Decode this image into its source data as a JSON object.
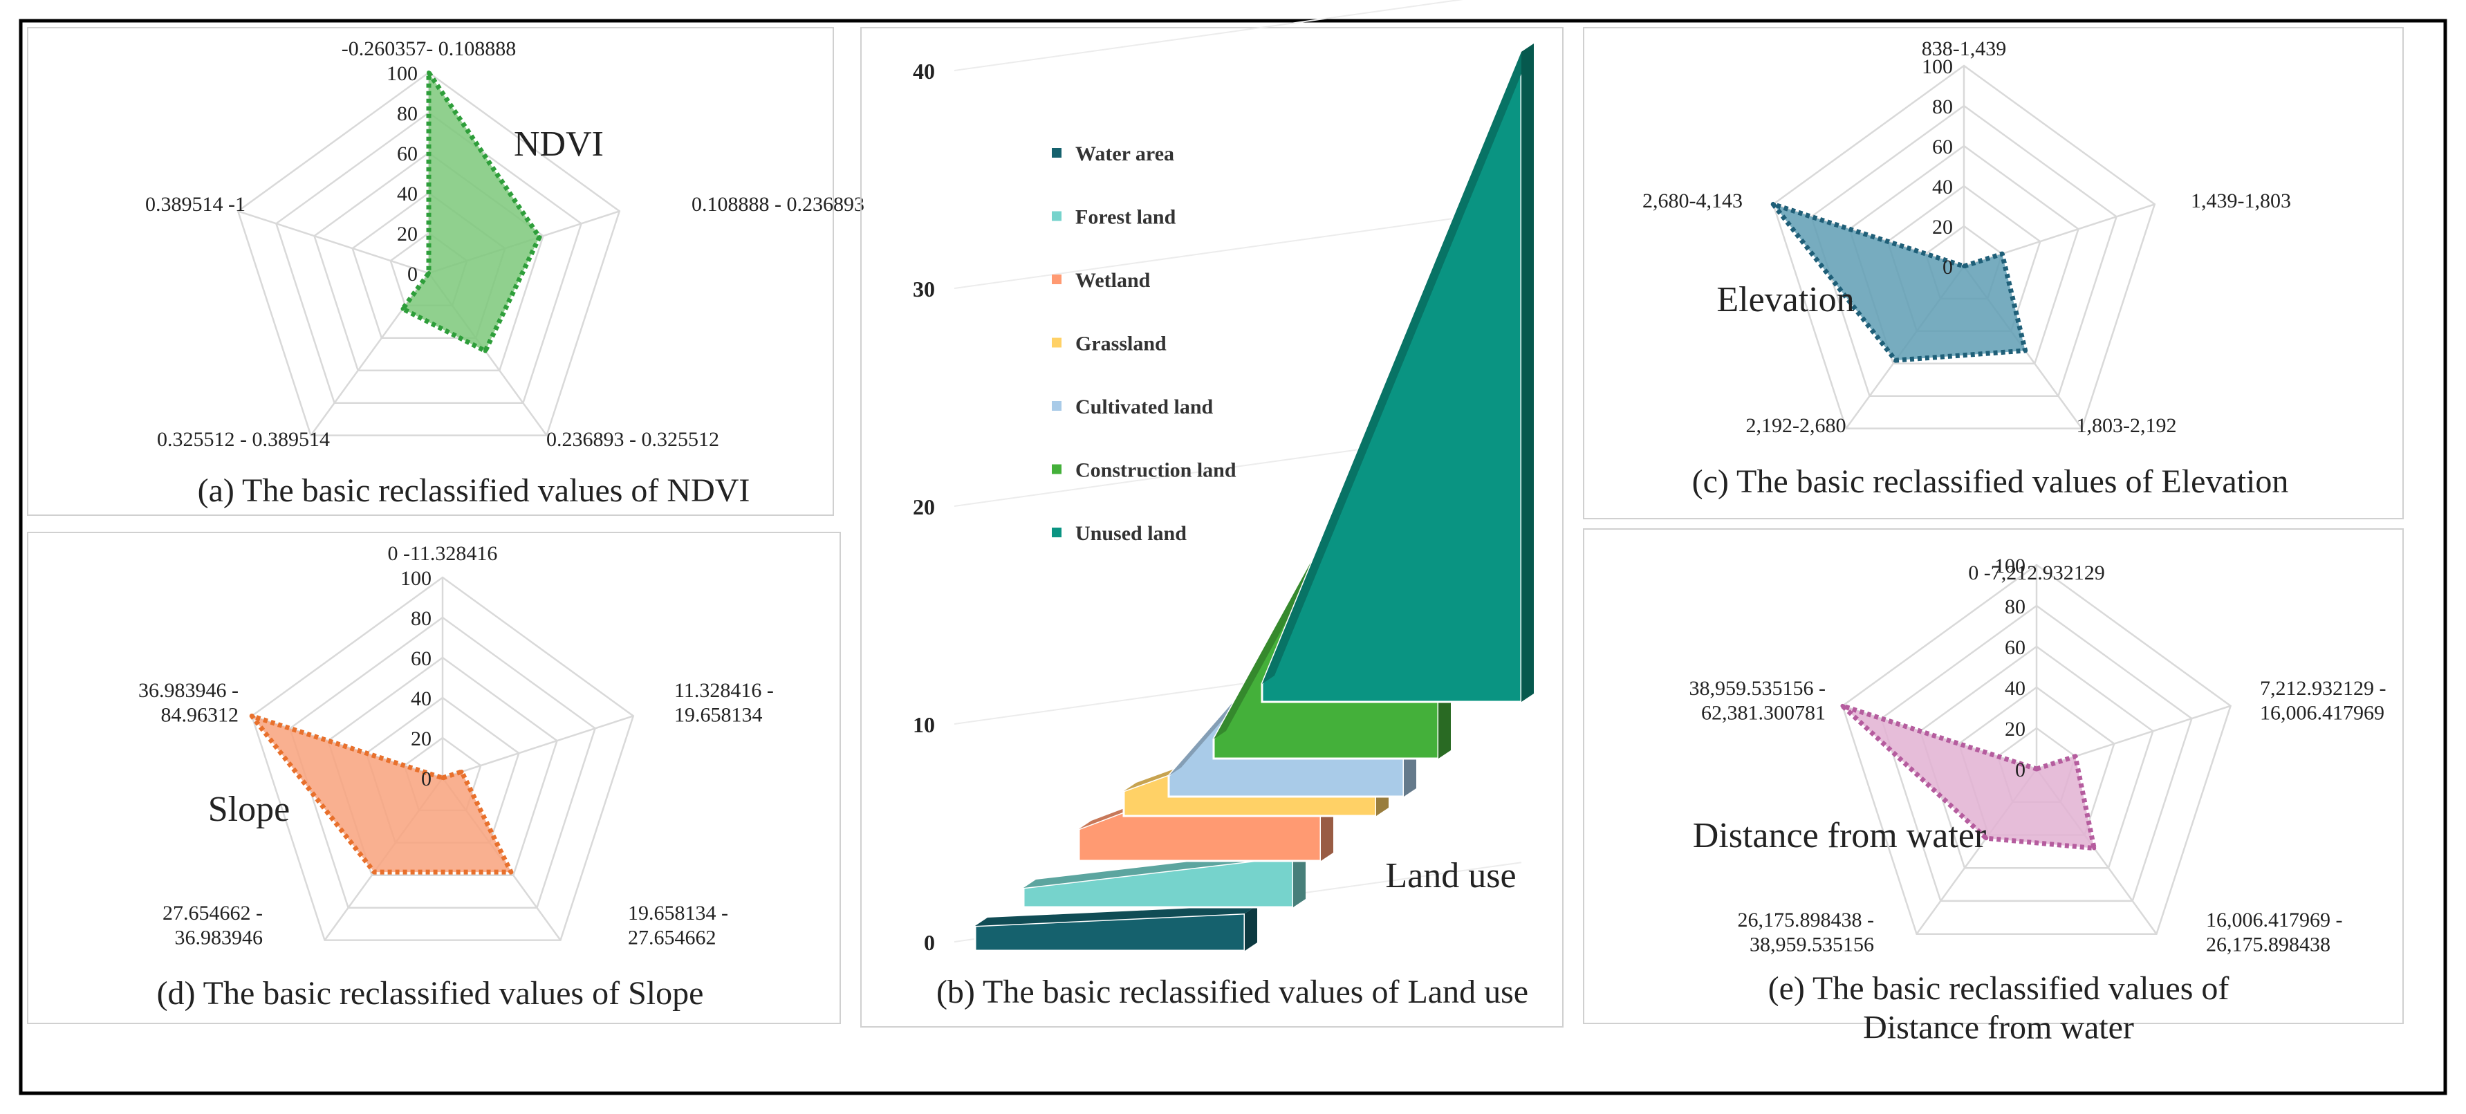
{
  "figure": {
    "colors": {
      "frame": "#000000",
      "panel_border": "#d0d0d0",
      "grid": "#d9d9d9",
      "text": "#222222"
    }
  },
  "chart_data": [
    {
      "id": "a",
      "type": "radar",
      "title": "NDVI",
      "caption": "(a) The basic reclassified values of NDVI",
      "categories": [
        "-0.260357- 0.108888",
        "0.108888 - 0.236893",
        "0.236893 - 0.325512",
        "0.325512 - 0.389514",
        "0.389514 -1"
      ],
      "values": [
        100,
        58,
        48,
        22,
        0
      ],
      "scale": [
        0,
        100
      ],
      "ticks": [
        0,
        20,
        40,
        60,
        80,
        100
      ],
      "fill": "#7dc87a",
      "stroke": "#2e9e3a"
    },
    {
      "id": "c",
      "type": "radar",
      "title": "Elevation",
      "caption": "(c) The basic reclassified values  of Elevation",
      "categories": [
        "838-1,439",
        "1,439-1,803",
        "1,803-2,192",
        "2,192-2,680",
        "2,680-4,143"
      ],
      "values": [
        0,
        20,
        52,
        58,
        100
      ],
      "scale": [
        0,
        100
      ],
      "ticks": [
        0,
        20,
        40,
        60,
        80,
        100
      ],
      "fill": "#5f9db4",
      "stroke": "#1f5f78"
    },
    {
      "id": "d",
      "type": "radar",
      "title": "Slope",
      "caption": "(d) The basic reclassified values of Slope",
      "categories": [
        "0 -11.328416",
        "11.328416 -\n19.658134",
        "19.658134 -\n27.654662",
        "27.654662 -\n36.983946",
        "36.983946 -\n84.96312"
      ],
      "values": [
        0,
        10,
        58,
        58,
        100
      ],
      "scale": [
        0,
        100
      ],
      "ticks": [
        0,
        20,
        40,
        60,
        80,
        100
      ],
      "fill": "#f8a27c",
      "stroke": "#e8702c"
    },
    {
      "id": "e",
      "type": "radar",
      "title": "Distance from water",
      "caption": "(e) The basic reclassified values of\nDistance from water",
      "categories": [
        "0 -7,212.932129",
        "7,212.932129 -\n16,006.417969",
        "16,006.417969 -\n26,175.898438",
        "26,175.898438 -\n38,959.535156",
        "38,959.535156 -\n62,381.300781"
      ],
      "values": [
        0,
        20,
        48,
        42,
        100
      ],
      "scale": [
        0,
        100
      ],
      "ticks": [
        0,
        20,
        40,
        60,
        80,
        100
      ],
      "fill": "#e2b2d2",
      "stroke": "#b55c9e"
    },
    {
      "id": "b",
      "type": "bar3d",
      "title": "Land use",
      "caption": "(b) The basic reclassified values  of Land use",
      "ylim": [
        0,
        100
      ],
      "yticks": [
        0,
        10,
        20,
        30,
        40,
        50,
        60,
        70,
        80,
        90,
        100
      ],
      "series": [
        {
          "name": "Water area",
          "value": 0,
          "color": "#15616d"
        },
        {
          "name": "Forest land",
          "value": 3,
          "color": "#76d3cc"
        },
        {
          "name": "Wetland",
          "value": 15,
          "color": "#ff9a72"
        },
        {
          "name": "Grassland",
          "value": 15,
          "color": "#ffd166"
        },
        {
          "name": "Cultivated land",
          "value": 43,
          "color": "#a9cbe8"
        },
        {
          "name": "Construction land",
          "value": 65,
          "color": "#44b03a"
        },
        {
          "name": "Unused land",
          "value": 100,
          "color": "#0a9482"
        }
      ]
    }
  ]
}
